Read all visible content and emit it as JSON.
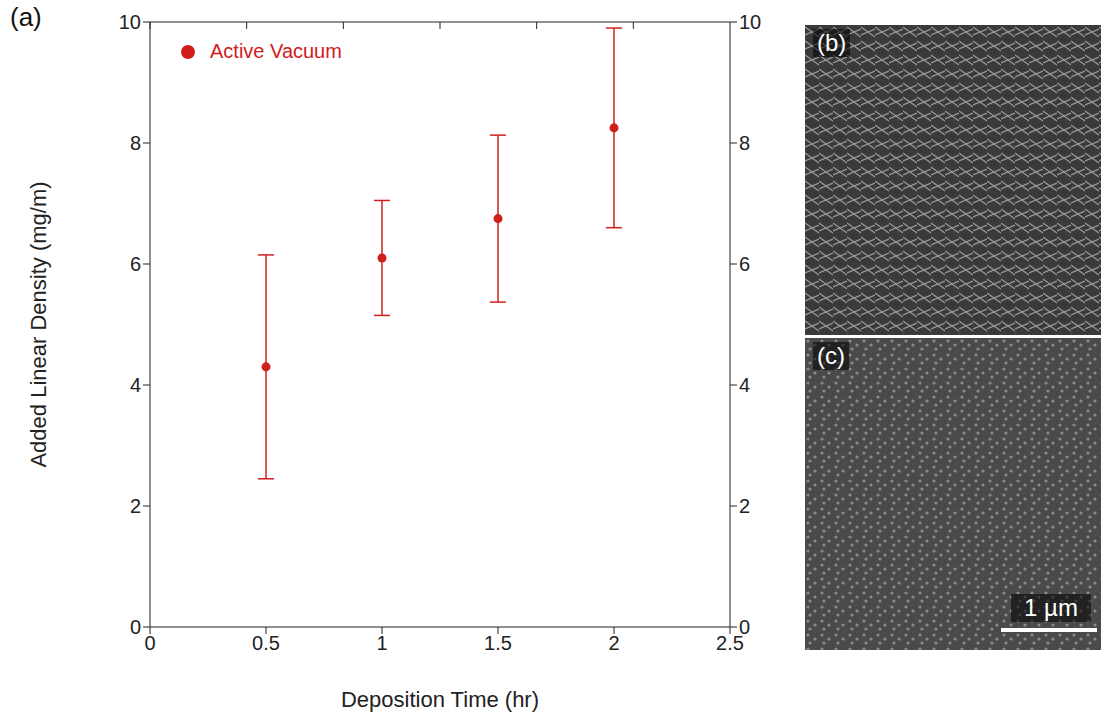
{
  "chart_data": {
    "type": "scatter",
    "panel_label": "(a)",
    "x_label": "Deposition Time (hr)",
    "y_label": "Added Linear Density (mg/m)",
    "series": [
      {
        "name": "Active Vacuum",
        "color": "#d0201c",
        "marker": "circle",
        "x": [
          0.5,
          1,
          1.5,
          2
        ],
        "values": [
          4.3,
          6.1,
          6.75,
          8.25
        ],
        "errors": [
          1.85,
          0.95,
          1.38,
          1.65
        ]
      }
    ],
    "xlim": [
      0,
      2.5
    ],
    "xticks": [
      0,
      0.5,
      1,
      1.5,
      2,
      2.5
    ],
    "ylim": [
      0,
      10
    ],
    "yticks": [
      0,
      2,
      4,
      6,
      8,
      10
    ],
    "legend": "upper left",
    "grid": false
  },
  "images": [
    {
      "label": "(b)"
    },
    {
      "label": "(c)",
      "scale_bar": "1 µm"
    }
  ]
}
